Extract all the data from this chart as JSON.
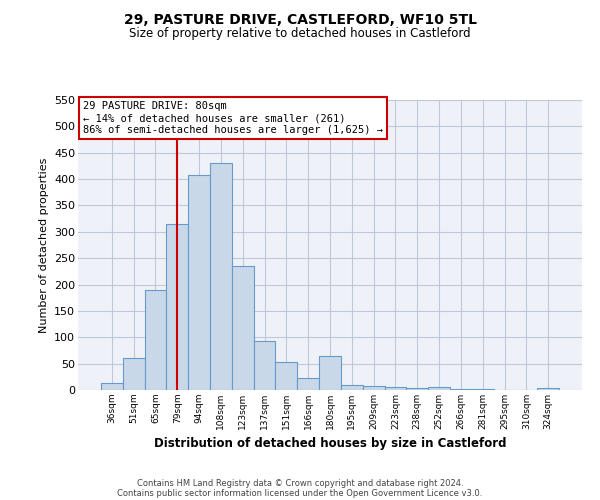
{
  "title": "29, PASTURE DRIVE, CASTLEFORD, WF10 5TL",
  "subtitle": "Size of property relative to detached houses in Castleford",
  "xlabel": "Distribution of detached houses by size in Castleford",
  "ylabel": "Number of detached properties",
  "categories": [
    "36sqm",
    "51sqm",
    "65sqm",
    "79sqm",
    "94sqm",
    "108sqm",
    "123sqm",
    "137sqm",
    "151sqm",
    "166sqm",
    "180sqm",
    "195sqm",
    "209sqm",
    "223sqm",
    "238sqm",
    "252sqm",
    "266sqm",
    "281sqm",
    "295sqm",
    "310sqm",
    "324sqm"
  ],
  "values": [
    13,
    60,
    190,
    315,
    408,
    430,
    235,
    93,
    53,
    23,
    65,
    10,
    8,
    5,
    4,
    5,
    1,
    1,
    0,
    0,
    4
  ],
  "bar_color": "#c8d8e8",
  "bar_edge_color": "#6699cc",
  "highlight_x": "79sqm",
  "highlight_line_color": "#cc0000",
  "annotation_title": "29 PASTURE DRIVE: 80sqm",
  "annotation_line1": "← 14% of detached houses are smaller (261)",
  "annotation_line2": "86% of semi-detached houses are larger (1,625) →",
  "annotation_box_color": "#cc0000",
  "ylim": [
    0,
    550
  ],
  "yticks": [
    0,
    50,
    100,
    150,
    200,
    250,
    300,
    350,
    400,
    450,
    500,
    550
  ],
  "grid_color": "#c0c8d8",
  "bg_color": "#eef2f8",
  "footer1": "Contains HM Land Registry data © Crown copyright and database right 2024.",
  "footer2": "Contains public sector information licensed under the Open Government Licence v3.0."
}
